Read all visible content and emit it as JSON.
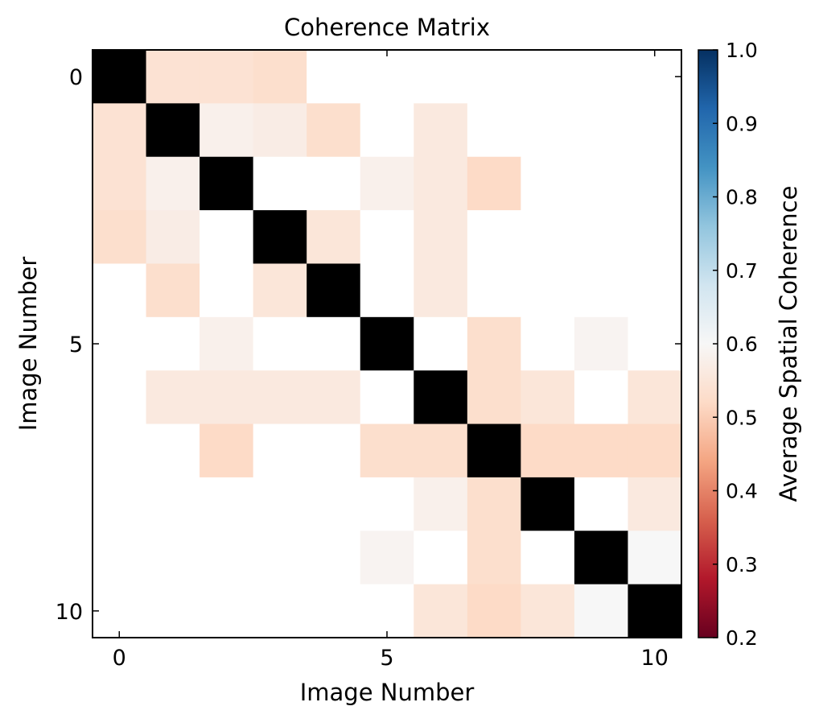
{
  "chart_data": {
    "type": "heatmap",
    "title": "Coherence Matrix",
    "xlabel": "Image Number",
    "ylabel": "Image Number",
    "x_ticks": [
      0,
      5,
      10
    ],
    "y_ticks": [
      0,
      5,
      10
    ],
    "colorbar": {
      "label": "Average Spatial Coherence",
      "range": [
        0.2,
        1.0
      ],
      "ticks": [
        "0.2",
        "0.3",
        "0.4",
        "0.5",
        "0.6",
        "0.7",
        "0.8",
        "0.9",
        "1.0"
      ],
      "colormap": "RdBu"
    },
    "diagonal_color": "#000000",
    "missing_color": "#ffffff",
    "grid": false,
    "matrix": [
      [
        1,
        0.54,
        0.54,
        0.53,
        null,
        null,
        null,
        null,
        null,
        null,
        null
      ],
      [
        0.54,
        1,
        0.58,
        0.57,
        0.53,
        null,
        0.56,
        null,
        null,
        null,
        null
      ],
      [
        0.54,
        0.58,
        1,
        null,
        null,
        0.58,
        0.56,
        0.52,
        null,
        null,
        null
      ],
      [
        0.53,
        0.57,
        null,
        1,
        0.55,
        null,
        0.56,
        null,
        null,
        null,
        null
      ],
      [
        null,
        0.53,
        null,
        0.55,
        1,
        null,
        0.56,
        null,
        null,
        null,
        null
      ],
      [
        null,
        null,
        0.58,
        null,
        null,
        1,
        null,
        0.53,
        null,
        0.59,
        null
      ],
      [
        null,
        0.56,
        0.56,
        0.56,
        0.56,
        null,
        1,
        0.53,
        0.55,
        null,
        0.55
      ],
      [
        null,
        null,
        0.52,
        null,
        null,
        0.53,
        0.53,
        1,
        0.52,
        0.52,
        0.52
      ],
      [
        null,
        null,
        null,
        null,
        null,
        null,
        0.58,
        0.53,
        1,
        null,
        0.56
      ],
      [
        null,
        null,
        null,
        null,
        null,
        0.59,
        null,
        0.53,
        null,
        1,
        0.6
      ],
      [
        null,
        null,
        null,
        null,
        null,
        null,
        0.55,
        0.52,
        0.55,
        0.6,
        1
      ]
    ]
  }
}
